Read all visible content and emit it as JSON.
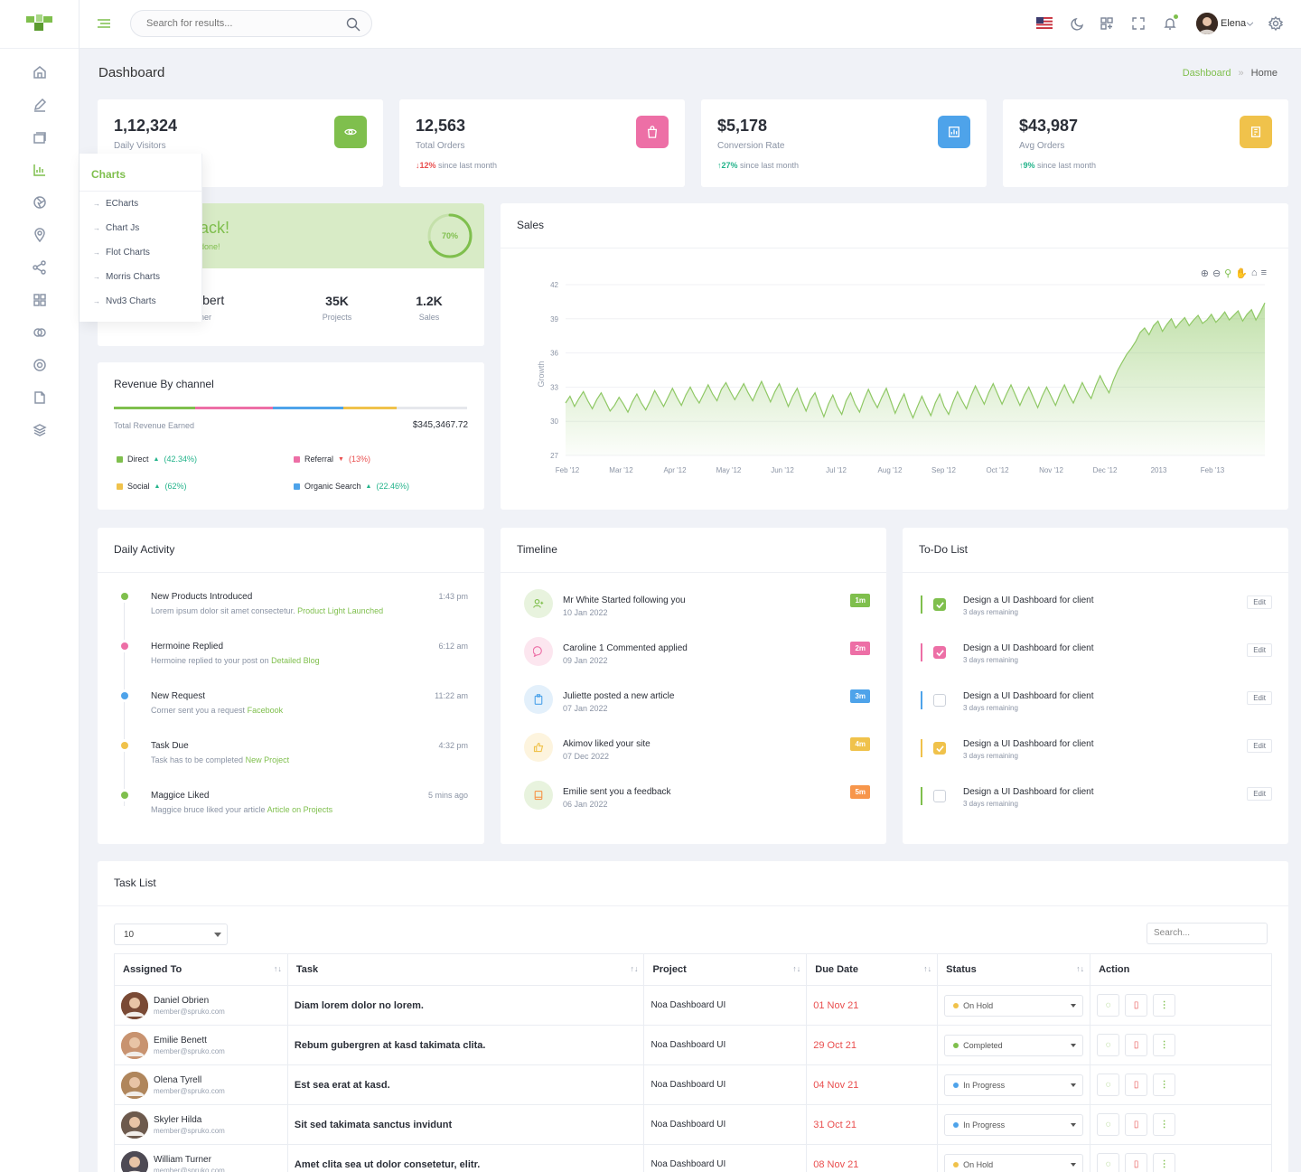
{
  "header": {
    "search_placeholder": "Search for results...",
    "user_name": "Elena"
  },
  "sidebar": {
    "flyout_title": "Charts",
    "flyout_items": [
      "ECharts",
      "Chart Js",
      "Flot Charts",
      "Morris Charts",
      "Nvd3 Charts"
    ]
  },
  "page": {
    "title": "Dashboard",
    "breadcrumb": [
      "Dashboard",
      "Home"
    ]
  },
  "stats": [
    {
      "value": "1,12,324",
      "label": "Daily Visitors",
      "change": "",
      "note": "",
      "color": "#7fbf4d",
      "icon": "eye-icon"
    },
    {
      "value": "12,563",
      "label": "Total Orders",
      "change": "12%",
      "note": "since last month",
      "dir": "down",
      "color": "#ed6fa6",
      "icon": "bag-icon"
    },
    {
      "value": "$5,178",
      "label": "Conversion Rate",
      "change": "27%",
      "note": "since last month",
      "dir": "up",
      "color": "#4ea3ea",
      "icon": "chart-icon"
    },
    {
      "value": "$43,987",
      "label": "Avg Orders",
      "change": "9%",
      "note": "since last month",
      "dir": "up",
      "color": "#f0c24b",
      "icon": "invoice-icon"
    }
  ],
  "welcome": {
    "title": "ack!",
    "subtitle": "done!",
    "progress": "70%",
    "name": "lbert",
    "role": "ner",
    "projects_value": "35K",
    "projects_label": "Projects",
    "sales_value": "1.2K",
    "sales_label": "Sales"
  },
  "revenue": {
    "title": "Revenue By channel",
    "total_label": "Total Revenue Earned",
    "total_value": "$345,3467.72",
    "segments": [
      {
        "color": "#7fbf4d",
        "pct": 0.23
      },
      {
        "color": "#ed6fa6",
        "pct": 0.22
      },
      {
        "color": "#4ea3ea",
        "pct": 0.2
      },
      {
        "color": "#f0c24b",
        "pct": 0.15
      },
      {
        "color": "#e6e8ec",
        "pct": 0.2
      }
    ],
    "legend": [
      {
        "name": "Direct",
        "pct": "(42.34%)",
        "dir": "up",
        "color": "#7fbf4d"
      },
      {
        "name": "Referral",
        "pct": "(13%)",
        "dir": "down",
        "color": "#ed6fa6"
      },
      {
        "name": "Social",
        "pct": "(62%)",
        "dir": "up",
        "color": "#f0c24b"
      },
      {
        "name": "Organic Search",
        "pct": "(22.46%)",
        "dir": "up",
        "color": "#4ea3ea"
      }
    ]
  },
  "sales": {
    "title": "Sales",
    "chart_data": {
      "type": "area",
      "ylabel": "Growth",
      "y_ticks": [
        27,
        30,
        33,
        36,
        39,
        42
      ],
      "ylim": [
        27,
        42
      ],
      "x_ticks": [
        "Feb '12",
        "Mar '12",
        "Apr '12",
        "May '12",
        "Jun '12",
        "Jul '12",
        "Aug '12",
        "Sep '12",
        "Oct '12",
        "Nov '12",
        "Dec '12",
        "2013",
        "Feb '13"
      ],
      "color": "#8fc865",
      "values": [
        31.6,
        32.2,
        31.3,
        32.0,
        32.6,
        31.8,
        31.1,
        31.9,
        32.5,
        31.7,
        30.9,
        31.4,
        32.1,
        31.5,
        30.8,
        31.7,
        32.4,
        31.6,
        31.0,
        31.8,
        32.7,
        32.0,
        31.3,
        32.1,
        32.9,
        32.1,
        31.4,
        32.3,
        33.0,
        32.2,
        31.6,
        32.4,
        33.2,
        32.4,
        31.8,
        32.8,
        33.4,
        32.6,
        31.9,
        32.6,
        33.3,
        32.5,
        31.8,
        32.7,
        33.5,
        32.6,
        31.7,
        32.6,
        33.3,
        32.3,
        31.3,
        32.2,
        32.9,
        31.8,
        30.9,
        31.9,
        32.5,
        31.4,
        30.4,
        31.5,
        32.3,
        31.3,
        30.6,
        31.8,
        32.5,
        31.5,
        30.8,
        31.9,
        32.8,
        31.9,
        31.2,
        32.1,
        32.9,
        31.8,
        30.7,
        31.6,
        32.4,
        31.2,
        30.3,
        31.3,
        32.2,
        31.3,
        30.5,
        31.6,
        32.4,
        31.3,
        30.6,
        31.7,
        32.6,
        31.8,
        31.1,
        32.2,
        33.1,
        32.3,
        31.5,
        32.5,
        33.3,
        32.4,
        31.5,
        32.4,
        33.2,
        32.3,
        31.4,
        32.3,
        33.0,
        32.1,
        31.2,
        32.2,
        33.0,
        32.2,
        31.4,
        32.4,
        33.2,
        32.3,
        31.6,
        32.5,
        33.4,
        32.6,
        32.0,
        33.1,
        34.0,
        33.2,
        32.5,
        33.6,
        34.5,
        35.2,
        35.9,
        36.4,
        37.0,
        37.8,
        38.2,
        37.6,
        38.4,
        38.8,
        37.9,
        38.5,
        39.0,
        38.2,
        38.7,
        39.1,
        38.4,
        38.9,
        39.3,
        38.6,
        38.9,
        39.4,
        38.7,
        39.1,
        39.6,
        38.9,
        39.3,
        39.7,
        38.8,
        39.4,
        39.8,
        38.9,
        39.6,
        40.4
      ]
    }
  },
  "activity": {
    "title": "Daily Activity",
    "items": [
      {
        "title": "New Products Introduced",
        "desc": "Lorem ipsum dolor sit amet consectetur.",
        "hl": "Product Light Launched",
        "time": "1:43 pm",
        "color": "#7fbf4d"
      },
      {
        "title": "Hermoine Replied",
        "desc": "Hermoine replied to your post on",
        "hl": "Detailed Blog",
        "time": "6:12 am",
        "color": "#ed6fa6"
      },
      {
        "title": "New Request",
        "desc": "Corner sent you a request",
        "hl": "Facebook",
        "time": "11:22 am",
        "color": "#4ea3ea"
      },
      {
        "title": "Task Due",
        "desc": "Task has to be completed",
        "hl": "New Project",
        "time": "4:32 pm",
        "color": "#f0c24b"
      },
      {
        "title": "Maggice Liked",
        "desc": "Maggice bruce liked your article",
        "hl": "Article on Projects",
        "time": "5 mins ago",
        "color": "#7fbf4d"
      }
    ]
  },
  "timeline": {
    "title": "Timeline",
    "items": [
      {
        "title": "Mr White Started following you",
        "date": "10 Jan 2022",
        "badge": "1m",
        "color": "#7fbf4d",
        "bg": "#e8f3de",
        "icon": "user-plus-icon"
      },
      {
        "title": "Caroline 1 Commented applied",
        "date": "09 Jan 2022",
        "badge": "2m",
        "color": "#ed6fa6",
        "bg": "#fce6ef",
        "icon": "comment-icon"
      },
      {
        "title": "Juliette posted a new article",
        "date": "07 Jan 2022",
        "badge": "3m",
        "color": "#4ea3ea",
        "bg": "#e3f0fb",
        "icon": "clipboard-icon"
      },
      {
        "title": "Akimov liked your site",
        "date": "07 Dec 2022",
        "badge": "4m",
        "color": "#f0c24b",
        "bg": "#fdf4de",
        "icon": "thumbs-up-icon"
      },
      {
        "title": "Emilie sent you a feedback",
        "date": "06 Jan 2022",
        "badge": "5m",
        "color": "#f7964b",
        "bg": "#e8f3de",
        "icon": "book-icon"
      }
    ]
  },
  "todo": {
    "title": "To-Do List",
    "edit_label": "Edit",
    "items": [
      {
        "title": "Design a UI Dashboard for client",
        "sub": "3 days remaining",
        "color": "#7fbf4d",
        "checked": true
      },
      {
        "title": "Design a UI Dashboard for client",
        "sub": "3 days remaining",
        "color": "#ed6fa6",
        "checked": true
      },
      {
        "title": "Design a UI Dashboard for client",
        "sub": "3 days remaining",
        "color": "#4ea3ea",
        "checked": false
      },
      {
        "title": "Design a UI Dashboard for client",
        "sub": "3 days remaining",
        "color": "#f0c24b",
        "checked": true
      },
      {
        "title": "Design a UI Dashboard for client",
        "sub": "3 days remaining",
        "color": "#7fbf4d",
        "checked": false
      }
    ]
  },
  "tasks": {
    "title": "Task List",
    "page_size": "10",
    "search_placeholder": "Search...",
    "columns": [
      "Assigned To",
      "Task",
      "Project",
      "Due Date",
      "Status",
      "Action"
    ],
    "rows": [
      {
        "name": "Daniel Obrien",
        "email": "member@spruko.com",
        "task": "Diam lorem dolor no lorem.",
        "project": "Noa Dashboard UI",
        "due": "01 Nov 21",
        "status": "On Hold",
        "status_color": "#f0c24b",
        "avatar": "#7a4a35"
      },
      {
        "name": "Emilie Benett",
        "email": "member@spruko.com",
        "task": "Rebum gubergren at kasd takimata clita.",
        "project": "Noa Dashboard UI",
        "due": "29 Oct 21",
        "status": "Completed",
        "status_color": "#7fbf4d",
        "avatar": "#c89370"
      },
      {
        "name": "Olena Tyrell",
        "email": "member@spruko.com",
        "task": "Est sea erat at kasd.",
        "project": "Noa Dashboard UI",
        "due": "04 Nov 21",
        "status": "In Progress",
        "status_color": "#4ea3ea",
        "avatar": "#b0865c"
      },
      {
        "name": "Skyler Hilda",
        "email": "member@spruko.com",
        "task": "Sit sed takimata sanctus invidunt",
        "project": "Noa Dashboard UI",
        "due": "31 Oct 21",
        "status": "In Progress",
        "status_color": "#4ea3ea",
        "avatar": "#6d5a4d"
      },
      {
        "name": "William Turner",
        "email": "member@spruko.com",
        "task": "Amet clita sea ut dolor consetetur, elitr.",
        "project": "Noa Dashboard UI",
        "due": "08 Nov 21",
        "status": "On Hold",
        "status_color": "#f0c24b",
        "avatar": "#4e4a54"
      }
    ]
  }
}
